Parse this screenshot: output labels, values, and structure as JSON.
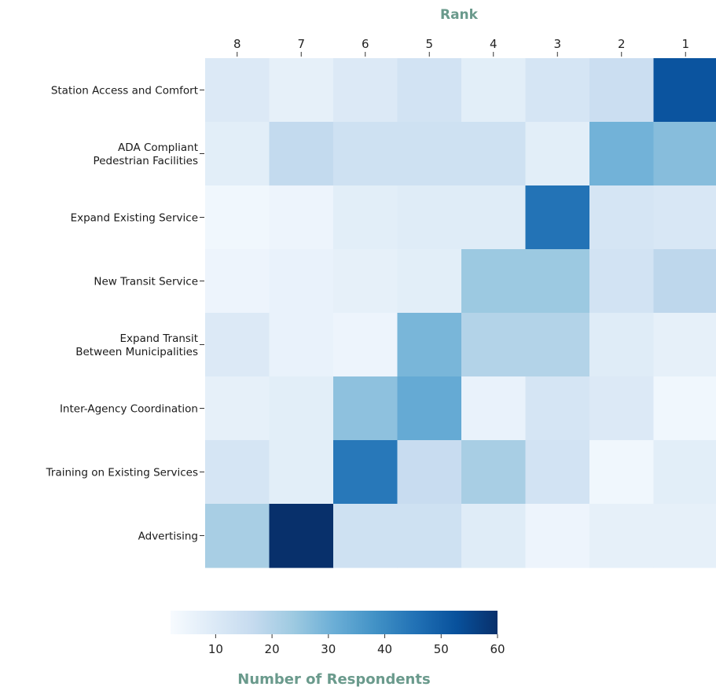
{
  "chart_data": {
    "type": "heatmap",
    "title": "",
    "xlabel": "Rank",
    "ylabel": "",
    "x_categories": [
      "8",
      "7",
      "6",
      "5",
      "4",
      "3",
      "2",
      "1"
    ],
    "y_categories": [
      [
        "Station Access and Comfort"
      ],
      [
        "ADA Compliant",
        "Pedestrian Facilities"
      ],
      [
        "Expand Existing Service"
      ],
      [
        "New Transit Service"
      ],
      [
        "Expand Transit",
        "Between Municipalities"
      ],
      [
        "Inter-Agency Coordination"
      ],
      [
        "Training on Existing Services"
      ],
      [
        "Advertising"
      ]
    ],
    "values": [
      [
        10,
        7,
        10,
        13,
        8,
        12,
        15,
        52
      ],
      [
        8,
        17,
        14,
        14,
        14,
        8,
        30,
        27
      ],
      [
        4,
        5,
        8,
        9,
        9,
        45,
        12,
        11
      ],
      [
        5,
        6,
        7,
        8,
        24,
        24,
        13,
        18
      ],
      [
        10,
        6,
        5,
        29,
        20,
        20,
        9,
        7
      ],
      [
        7,
        8,
        26,
        32,
        6,
        12,
        10,
        4
      ],
      [
        12,
        8,
        44,
        16,
        22,
        13,
        4,
        8
      ],
      [
        22,
        60,
        14,
        14,
        9,
        5,
        7,
        7
      ]
    ],
    "colorbar": {
      "label": "Number of Respondents",
      "min": 2,
      "max": 60,
      "ticks": [
        10,
        20,
        30,
        40,
        50,
        60
      ],
      "colormap": "Blues",
      "colors": [
        "#f7fbff",
        "#deebf7",
        "#c6dbef",
        "#9ecae1",
        "#6baed6",
        "#4292c6",
        "#2171b5",
        "#08519c",
        "#08306b"
      ]
    },
    "grid": false
  }
}
